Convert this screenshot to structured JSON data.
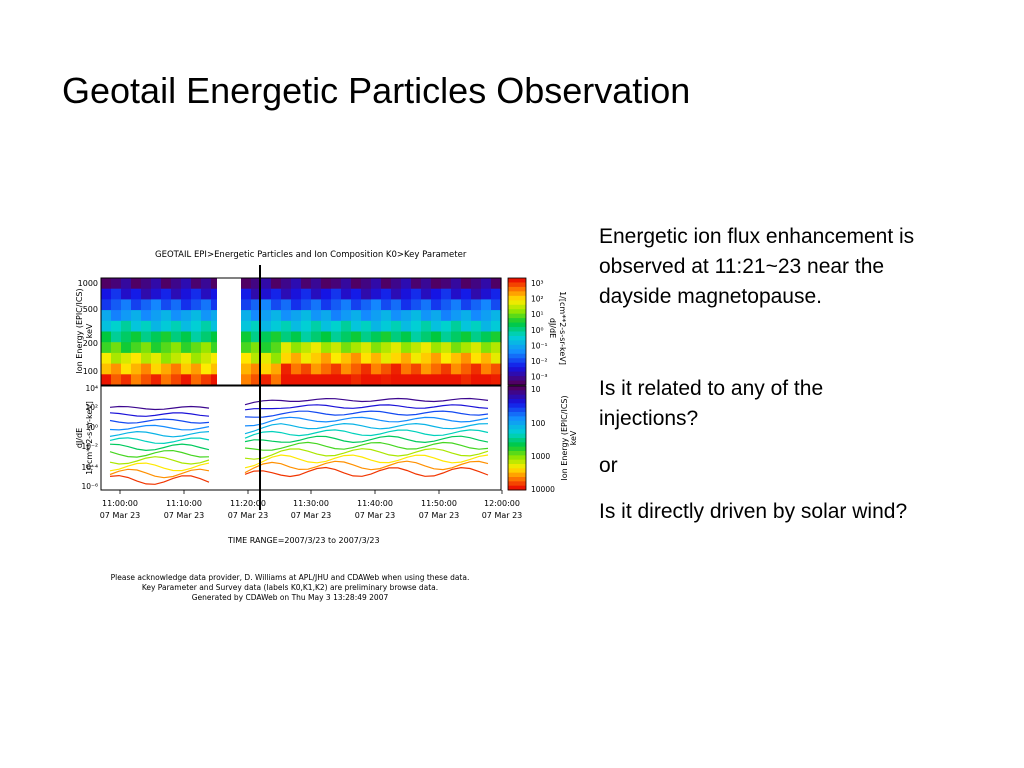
{
  "slide": {
    "title": "Geotail Energetic Particles Observation",
    "paragraph1_lines": [
      "Energetic ion flux enhancement is",
      "observed at 11:21~23 near the",
      "dayside magnetopause."
    ],
    "question1_lines": [
      "Is it related to any of the",
      "injections?"
    ],
    "or_text": "or",
    "question2": "Is it directly driven by solar wind?"
  },
  "figure": {
    "title": "GEOTAIL   EPI>Energetic Particles and Ion Composition   K0>Key Parameter",
    "spectrogram": {
      "ylabel_line1": "Ion Energy (EPIC/ICS)",
      "ylabel_line2": "keV",
      "yticks": [
        "1000",
        "500",
        "200",
        "100"
      ],
      "colorbar_ticks": [
        "10³",
        "10²",
        "10¹",
        "10⁰",
        "10⁻¹",
        "10⁻²",
        "10⁻³"
      ],
      "colorbar_label_line1": "dJ/dE",
      "colorbar_label_line2": "1/[cm**2-s-sr-keV]"
    },
    "lineplot": {
      "ylabel_line1": "dJ/dE",
      "ylabel_line2": "1/[cm**2-s-sr-keV]",
      "yticks": [
        "10⁴",
        "10²",
        "10⁰",
        "10⁻²",
        "10⁻⁴",
        "10⁻⁶"
      ],
      "colorbar_ticks": [
        "10",
        "100",
        "1000",
        "10000"
      ],
      "colorbar_label_line1": "Ion Energy (EPIC/ICS)",
      "colorbar_label_line2": "keV"
    },
    "time_ticks": [
      {
        "time": "11:00:00",
        "date": "07 Mar 23"
      },
      {
        "time": "11:10:00",
        "date": "07 Mar 23"
      },
      {
        "time": "11:20:00",
        "date": "07 Mar 23"
      },
      {
        "time": "11:30:00",
        "date": "07 Mar 23"
      },
      {
        "time": "11:40:00",
        "date": "07 Mar 23"
      },
      {
        "time": "11:50:00",
        "date": "07 Mar 23"
      },
      {
        "time": "12:00:00",
        "date": "07 Mar 23"
      }
    ],
    "time_range": "TIME RANGE=2007/3/23 to 2007/3/23",
    "footer_lines": [
      "Please acknowledge data provider, D. Williams at APL/JHU and CDAWeb when using these data.",
      "Key Parameter and Survey data (labels K0,K1,K2) are preliminary browse data.",
      "Generated by CDAWeb on Thu May  3 13:28:49 2007"
    ]
  }
}
